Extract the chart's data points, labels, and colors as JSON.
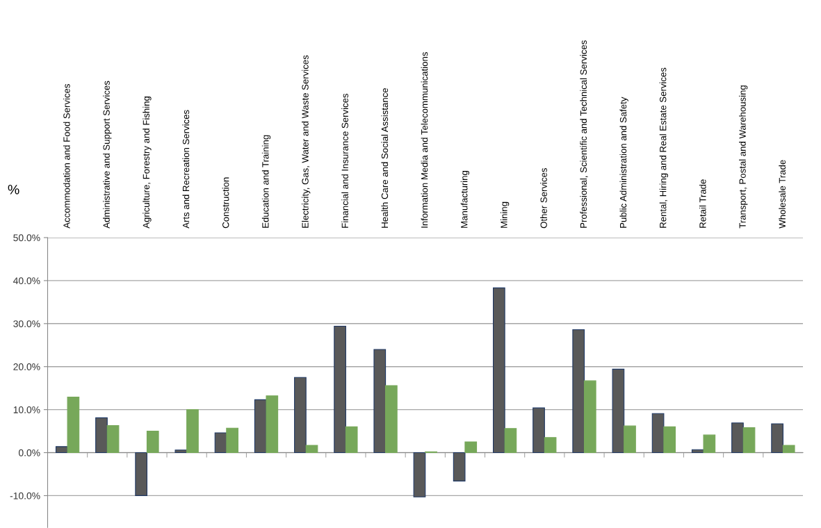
{
  "chart_data": {
    "type": "bar",
    "ylabel": "%",
    "categories": [
      "Accommodation and Food Services",
      "Administrative and Support Services",
      "Agriculture, Forestry and Fishing",
      "Arts and Recreation Services",
      "Construction",
      "Education and Training",
      "Electricity, Gas, Water and Waste Services",
      "Financial and Insurance Services",
      "Health Care and Social Assistance",
      "Information Media and Telecommunications",
      "Manufacturing",
      "Mining",
      "Other Services",
      "Professional, Scientific and Technical Services",
      "Public Administration and Safety",
      "Rental, Hiring and Real Estate Services",
      "Retail Trade",
      "Transport, Postal and Warehousing",
      "Wholesale Trade"
    ],
    "series": [
      {
        "color": "#595959",
        "values": [
          1.4,
          8.1,
          -10.0,
          0.6,
          4.6,
          12.3,
          17.5,
          29.4,
          24.0,
          -10.3,
          -6.6,
          38.3,
          10.4,
          28.6,
          19.4,
          9.1,
          0.7,
          6.9,
          6.7
        ]
      },
      {
        "color": "#77a85a",
        "values": [
          12.9,
          6.3,
          5.0,
          10.0,
          5.7,
          13.2,
          1.7,
          6.0,
          15.6,
          0.2,
          2.5,
          5.6,
          3.5,
          16.7,
          6.2,
          6.0,
          4.1,
          5.8,
          1.7
        ]
      }
    ],
    "ylim": [
      -17.4,
      50
    ],
    "yticks": [
      {
        "value": -10,
        "label": "-10.0%"
      },
      {
        "value": 0,
        "label": "0.0%"
      },
      {
        "value": 10,
        "label": "10.0%"
      },
      {
        "value": 20,
        "label": "20.0%"
      },
      {
        "value": 30,
        "label": "30.0%"
      },
      {
        "value": 40,
        "label": "40.0%"
      },
      {
        "value": 50,
        "label": "50.0%"
      }
    ],
    "grid": "y"
  }
}
